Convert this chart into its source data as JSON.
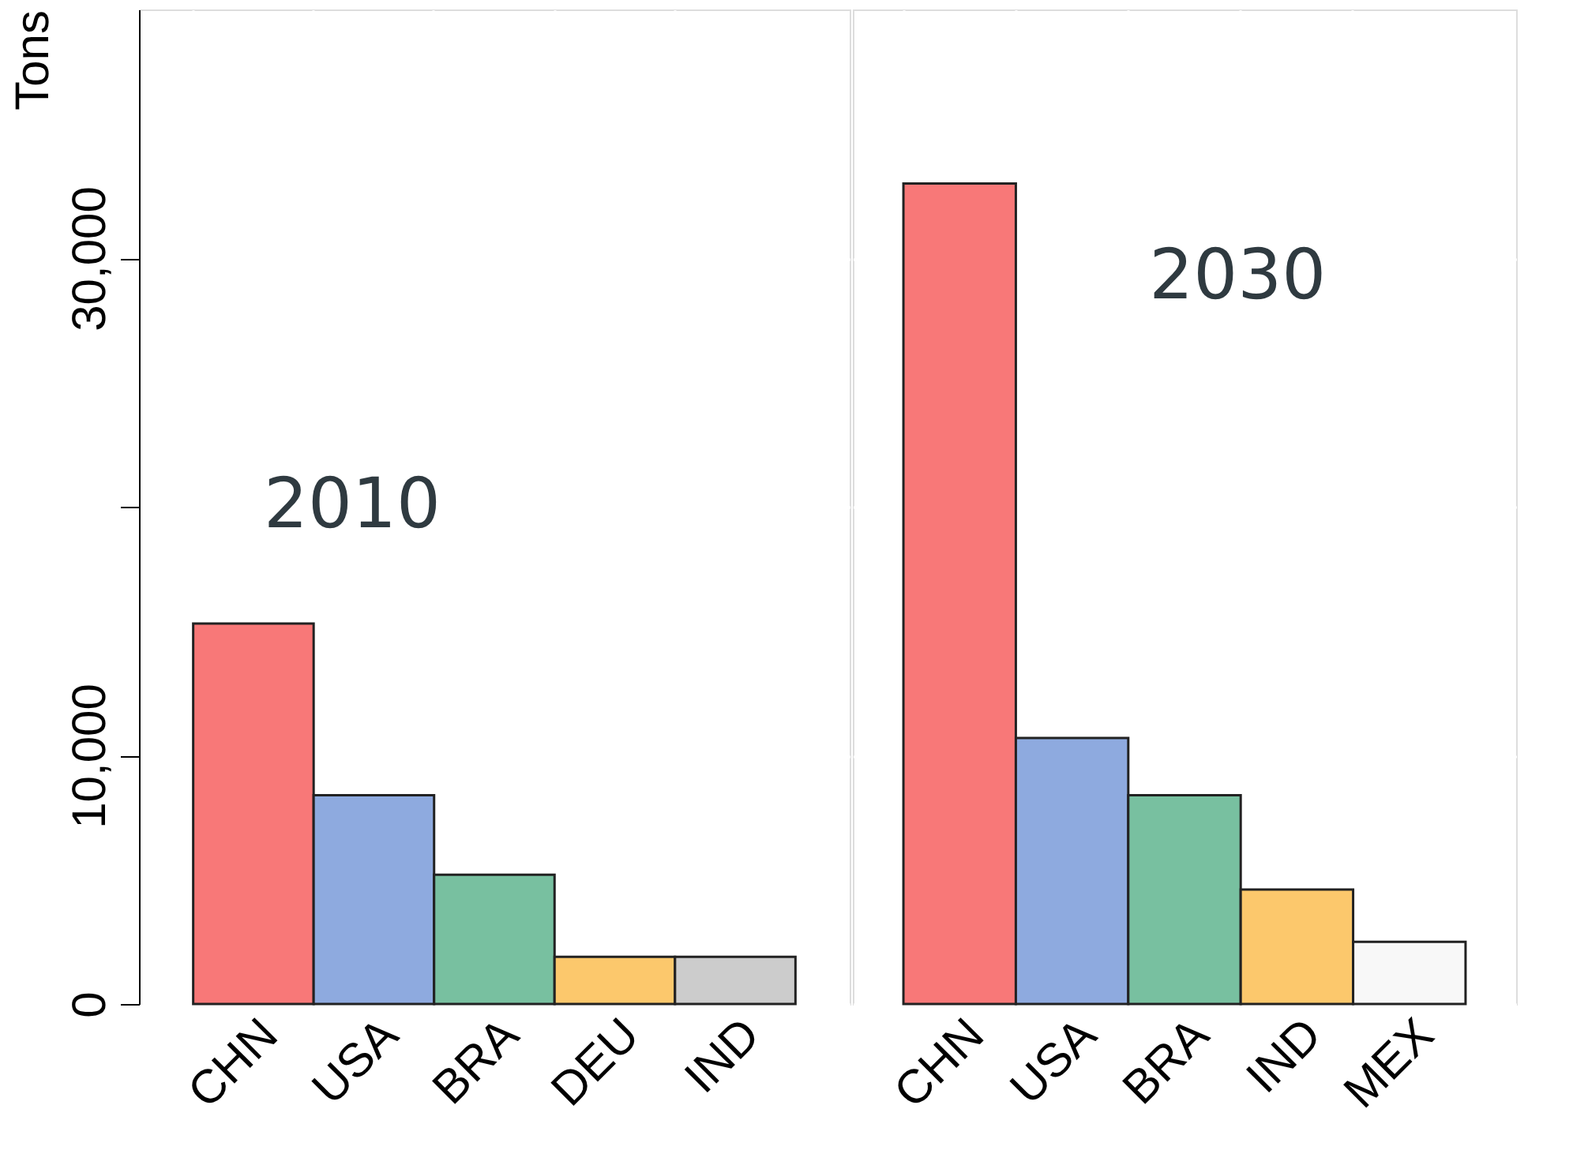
{
  "chart_data": [
    {
      "type": "bar",
      "categories": [
        "CHN",
        "USA",
        "BRA",
        "DEU",
        "IND"
      ],
      "values": [
        15300,
        8400,
        5200,
        1900,
        1900
      ],
      "colors": [
        "#f87878",
        "#8eaadf",
        "#78c0a0",
        "#fcc86c",
        "#cccccc"
      ],
      "ylabel": "Tons",
      "ylim": [
        0,
        40000
      ],
      "yticks": [
        {
          "value": 0,
          "label": "0"
        },
        {
          "value": 10000,
          "label": "10,000"
        },
        {
          "value": 20000,
          "label": null
        },
        {
          "value": 30000,
          "label": "30,000"
        }
      ],
      "grid": true,
      "annotations": [
        "2010"
      ]
    },
    {
      "type": "bar",
      "categories": [
        "CHN",
        "USA",
        "BRA",
        "IND",
        "MEX"
      ],
      "values": [
        33000,
        10700,
        8400,
        4600,
        2500
      ],
      "colors": [
        "#f87878",
        "#8eaadf",
        "#78c0a0",
        "#fcc86c",
        "#f8f8f8"
      ],
      "ylim": [
        0,
        40000
      ],
      "yticks": [
        0,
        10000,
        20000,
        30000
      ],
      "grid": true,
      "tick_labels": "x",
      "annotations": [
        "2030"
      ]
    }
  ]
}
